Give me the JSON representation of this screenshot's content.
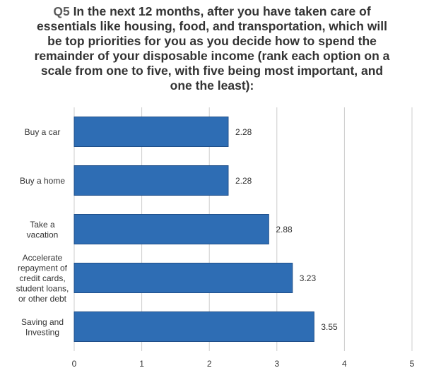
{
  "chart_data": {
    "type": "bar",
    "orientation": "horizontal",
    "title_prefix": "Q5",
    "title": "In the next 12 months, after you have taken care of essentials like housing, food, and transportation, which will be top priorities for you as you decide how to spend the remainder of your disposable income (rank each option on a scale from one to five, with five being most important, and one the least):",
    "categories": [
      [
        "Buy a car"
      ],
      [
        "Buy a home"
      ],
      [
        "Take a",
        "vacation"
      ],
      [
        "Accelerate",
        "repayment of",
        "credit cards,",
        "student loans,",
        "or other debt"
      ],
      [
        "Saving and",
        "Investing"
      ]
    ],
    "values": [
      2.28,
      2.28,
      2.88,
      3.23,
      3.55
    ],
    "value_labels": [
      "2.28",
      "2.28",
      "2.88",
      "3.23",
      "3.55"
    ],
    "xlim": [
      0,
      5
    ],
    "xticks": [
      "0",
      "1",
      "2",
      "3",
      "4",
      "5"
    ],
    "grid": true,
    "bar_color": "#2e6db4",
    "bar_border_color": "#1f4f8a",
    "grid_color": "#cccccc",
    "text_color": "#333333"
  }
}
